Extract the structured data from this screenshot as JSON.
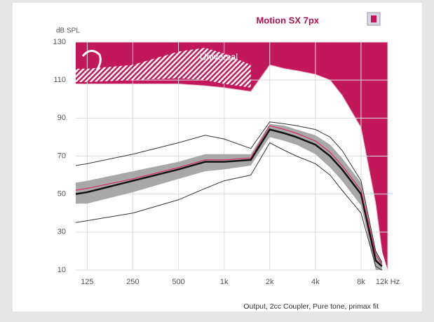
{
  "chart_data": {
    "type": "line",
    "title": "Motion SX 7px",
    "y_label": "dB SPL",
    "annotation": "Universal",
    "footer": "Output, 2cc Coupler, Pure tone, primax fit",
    "log_x": true,
    "grid": true,
    "x": [
      105,
      125,
      250,
      500,
      750,
      1000,
      1500,
      2000,
      2500,
      3000,
      4000,
      5000,
      6000,
      8000,
      10000,
      11000
    ],
    "xlim": [
      105,
      12000
    ],
    "xticks": [
      125,
      250,
      500,
      {
        "value": 1000,
        "label": "1k"
      },
      {
        "value": 2000,
        "label": "2k"
      },
      {
        "value": 4000,
        "label": "4k"
      },
      {
        "value": 8000,
        "label": "8k"
      },
      {
        "value": 12000,
        "label": "12k Hz"
      }
    ],
    "ylim": [
      10,
      130
    ],
    "yticks": [
      10,
      30,
      50,
      70,
      90,
      110,
      130
    ],
    "max_output": {
      "color": "#c2185b",
      "values": [
        108,
        108,
        108,
        108,
        107,
        106,
        104,
        118,
        116,
        115,
        113,
        110,
        102,
        85,
        45,
        20
      ]
    },
    "hatch": {
      "color": "#c2185b",
      "upper": [
        116,
        116,
        118,
        125,
        127,
        124,
        118,
        null,
        null,
        null,
        null,
        null,
        null,
        null,
        null,
        null
      ],
      "lower": [
        109,
        109,
        110,
        111,
        110,
        108,
        106,
        null,
        null,
        null,
        null,
        null,
        null,
        null,
        null,
        null
      ]
    },
    "band": {
      "color": "#a8a8a8",
      "upper": [
        56,
        57,
        62,
        67,
        71,
        71,
        71,
        87,
        86,
        84,
        81,
        76,
        69,
        56,
        20,
        14
      ],
      "lower": [
        45,
        45,
        51,
        58,
        62,
        63,
        65,
        80,
        78,
        76,
        71,
        64,
        57,
        44,
        10,
        10
      ]
    },
    "series": [
      {
        "color": "#111111",
        "values": [
          50,
          51,
          57,
          63,
          67,
          67,
          68,
          84,
          82,
          80,
          76,
          70,
          63,
          50,
          15,
          12
        ]
      },
      {
        "color": "#333333",
        "values": [
          65,
          66,
          71,
          77,
          81,
          79,
          74,
          88,
          87,
          86,
          84,
          80,
          73,
          57,
          20,
          14
        ]
      },
      {
        "color": "#333333",
        "values": [
          35,
          36,
          40,
          47,
          53,
          57,
          60,
          77,
          73,
          70,
          66,
          60,
          52,
          40,
          12,
          10
        ]
      },
      {
        "color": "#d81b60",
        "values": [
          52,
          53,
          58,
          64,
          68,
          68,
          69,
          86,
          84,
          82,
          78,
          72,
          65,
          52,
          18,
          13
        ]
      }
    ]
  }
}
